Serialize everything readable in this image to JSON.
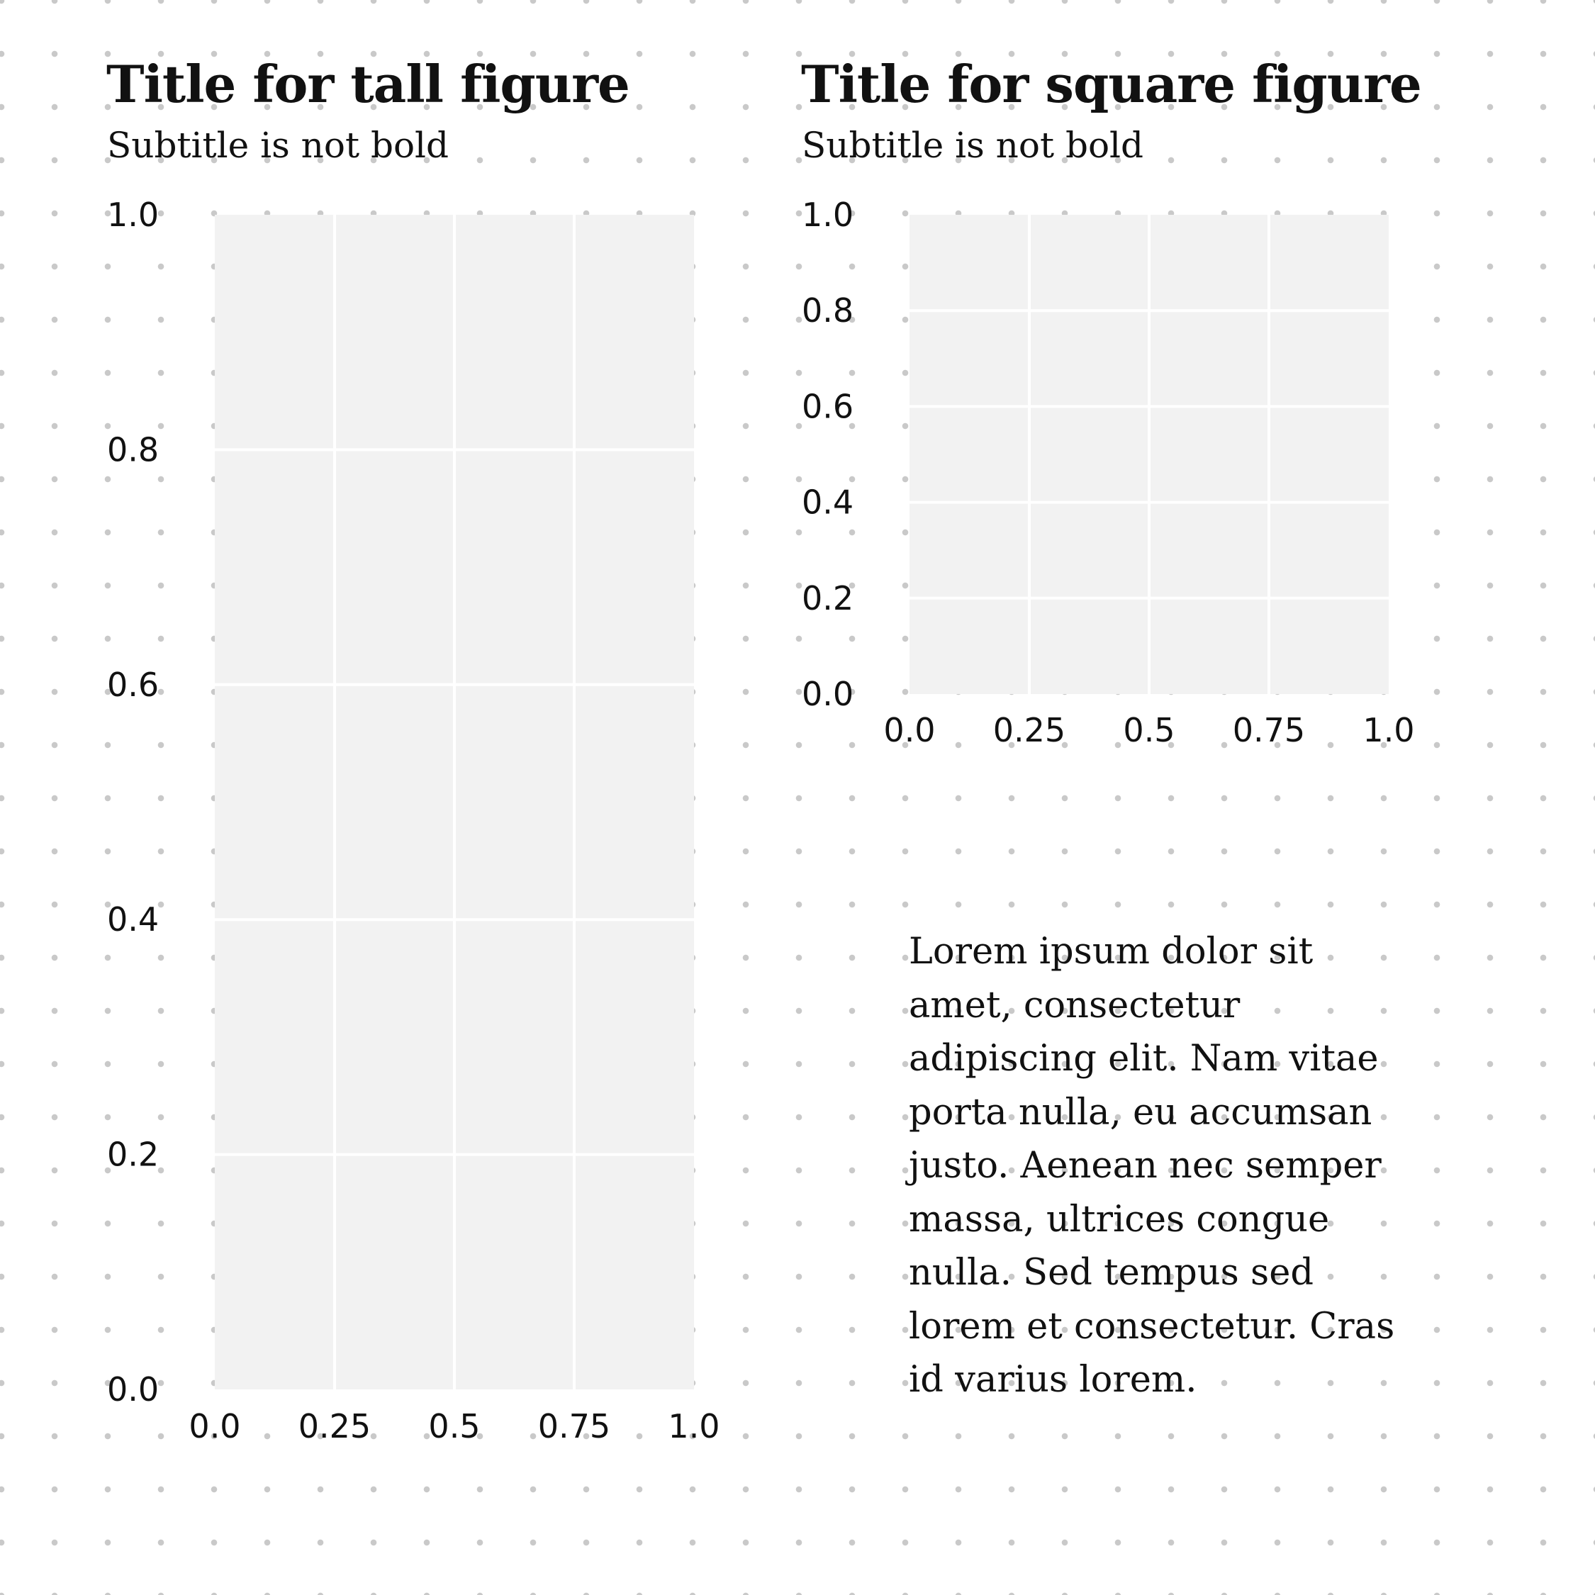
{
  "panels": [
    {
      "title": "Title for tall figure",
      "subtitle": "Subtitle is not bold"
    },
    {
      "title": "Title for square figure",
      "subtitle": "Subtitle is not bold"
    }
  ],
  "body_text": "Lorem ipsum dolor sit amet, consectetur adipiscing elit. Nam vitae porta nulla, eu accumsan justo. Aenean nec semper massa, ultrices congue nulla. Sed tempus sed lorem et consectetur. Cras id varius lorem.",
  "colors": {
    "plot_background": "#f2f2f2",
    "gridline": "#ffffff",
    "dot_grid": "#c9c9c9",
    "text": "#111111"
  },
  "chart_data": [
    {
      "type": "scatter",
      "title": "Title for tall figure",
      "subtitle": "Subtitle is not bold",
      "series": [],
      "xlim": [
        0,
        1
      ],
      "ylim": [
        0,
        1
      ],
      "x_ticks": [
        0,
        0.25,
        0.5,
        0.75,
        1
      ],
      "x_tick_labels": [
        "0.0",
        "0.25",
        "0.5",
        "0.75",
        "1.0"
      ],
      "y_ticks": [
        0,
        0.2,
        0.4,
        0.6,
        0.8,
        1
      ],
      "y_tick_labels": [
        "0.0",
        "0.2",
        "0.4",
        "0.6",
        "0.8",
        "1.0"
      ],
      "grid": true
    },
    {
      "type": "scatter",
      "title": "Title for square figure",
      "subtitle": "Subtitle is not bold",
      "series": [],
      "xlim": [
        0,
        1
      ],
      "ylim": [
        0,
        1
      ],
      "x_ticks": [
        0,
        0.25,
        0.5,
        0.75,
        1
      ],
      "x_tick_labels": [
        "0.0",
        "0.25",
        "0.5",
        "0.75",
        "1.0"
      ],
      "y_ticks": [
        0,
        0.2,
        0.4,
        0.6,
        0.8,
        1
      ],
      "y_tick_labels": [
        "0.0",
        "0.2",
        "0.4",
        "0.6",
        "0.8",
        "1.0"
      ],
      "grid": true
    }
  ]
}
